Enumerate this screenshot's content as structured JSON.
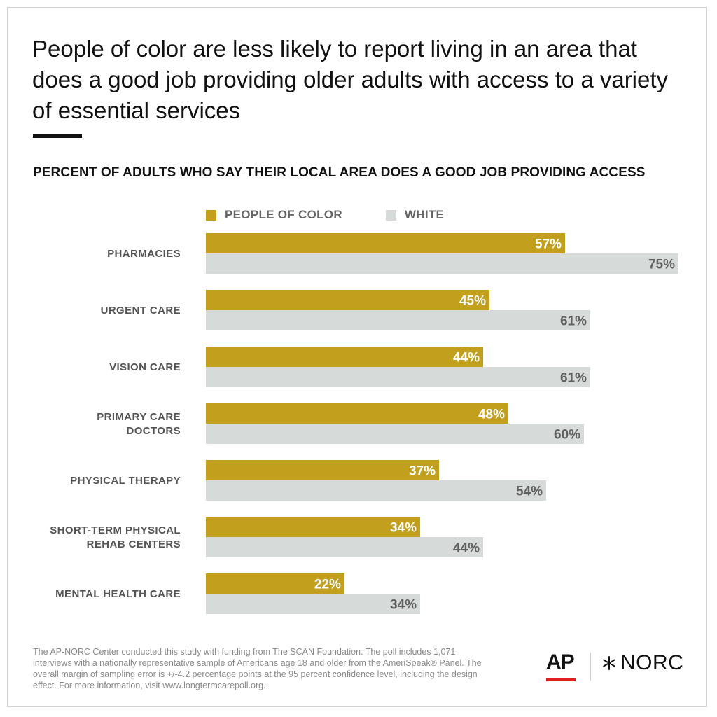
{
  "title": "People of color are less likely to report living in an area that does a good job providing older adults with access to a variety of essential services",
  "chart_data": {
    "type": "bar",
    "orientation": "horizontal",
    "subtitle": "PERCENT OF ADULTS WHO SAY THEIR LOCAL AREA DOES A GOOD JOB PROVIDING ACCESS",
    "categories": [
      "PHARMACIES",
      "URGENT CARE",
      "VISION CARE",
      "PRIMARY CARE DOCTORS",
      "PHYSICAL THERAPY",
      "SHORT-TERM PHYSICAL REHAB CENTERS",
      "MENTAL HEALTH CARE"
    ],
    "category_lines": [
      [
        "PHARMACIES"
      ],
      [
        "URGENT CARE"
      ],
      [
        "VISION CARE"
      ],
      [
        "PRIMARY CARE",
        "DOCTORS"
      ],
      [
        "PHYSICAL THERAPY"
      ],
      [
        "SHORT-TERM PHYSICAL",
        "REHAB CENTERS"
      ],
      [
        "MENTAL HEALTH CARE"
      ]
    ],
    "series": [
      {
        "name": "PEOPLE OF COLOR",
        "color": "#c2a01e",
        "label_color": "#ffffff",
        "values": [
          57,
          45,
          44,
          48,
          37,
          34,
          22
        ]
      },
      {
        "name": "WHITE",
        "color": "#d6dad8",
        "label_color": "#606060",
        "values": [
          75,
          61,
          61,
          60,
          54,
          44,
          34
        ]
      }
    ],
    "value_suffix": "%",
    "xlim": [
      0,
      75
    ],
    "grid": false,
    "legend": "top"
  },
  "footnote": "The AP-NORC Center conducted this study with funding from The SCAN Foundation. The poll includes 1,071 interviews with a nationally representative sample of Americans age 18 and older from the AmeriSpeak® Panel. The overall margin of sampling error is +/-4.2 percentage points at the 95 percent confidence level, including the design effect. For more information, visit www.longtermcarepoll.org.",
  "logos": {
    "ap": "AP",
    "norc": "NORC"
  }
}
